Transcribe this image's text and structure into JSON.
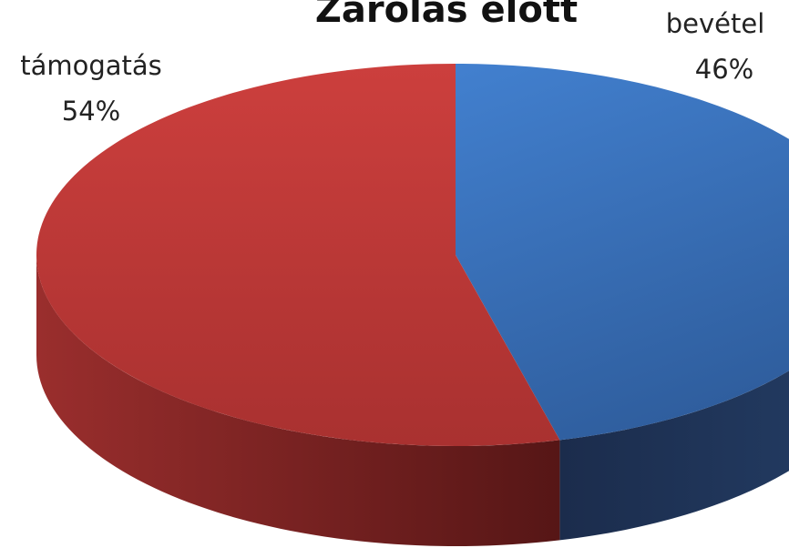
{
  "chart_data": {
    "type": "pie",
    "title": "Zárolás előtt",
    "categories": [
      "bevétel",
      "támogatás"
    ],
    "values": [
      46,
      54
    ],
    "value_labels": [
      "46%",
      "54%"
    ],
    "colors": [
      "#3b73c0",
      "#c43a39"
    ]
  }
}
